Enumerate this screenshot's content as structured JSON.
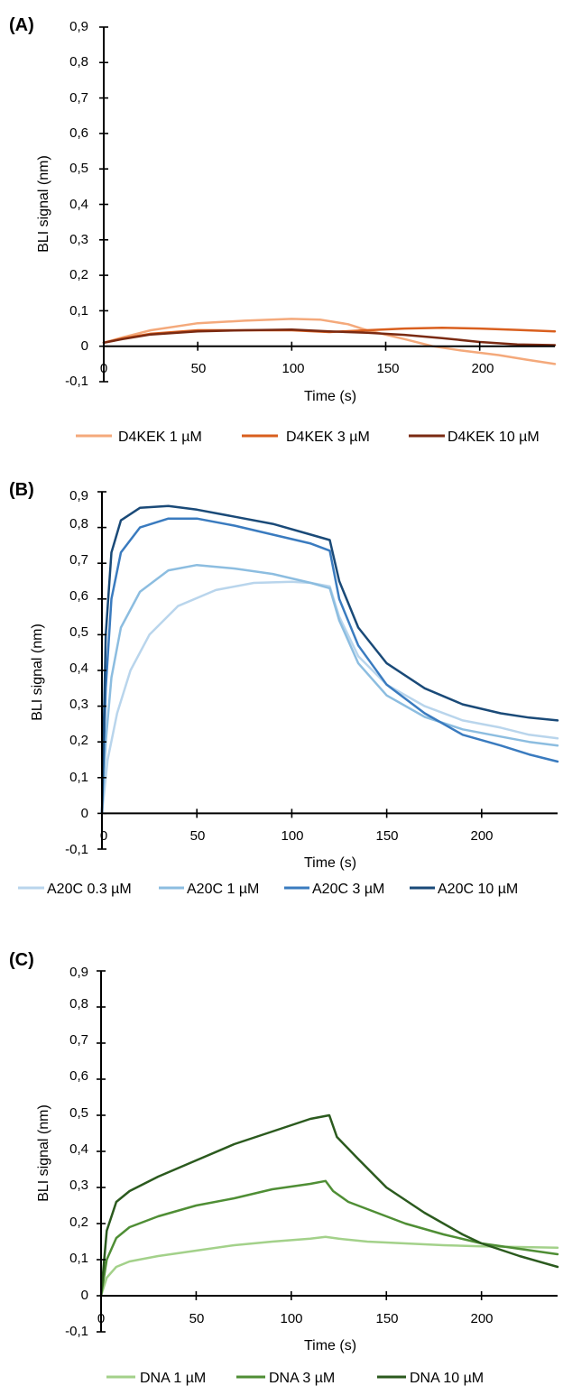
{
  "chart_data": [
    {
      "panel_label": "(A)",
      "type": "line",
      "xlabel": "Time (s)",
      "ylabel": "BLI signal (nm)",
      "xlim": [
        0,
        240
      ],
      "ylim": [
        -0.1,
        0.9
      ],
      "xticks": [
        "0",
        "50",
        "100",
        "150",
        "200"
      ],
      "yticks": [
        "-0,1",
        "0",
        "0,1",
        "0,2",
        "0,3",
        "0,4",
        "0,5",
        "0,6",
        "0,7",
        "0,8",
        "0,9"
      ],
      "grid": false,
      "legend_position": "bottom",
      "series": [
        {
          "name": "D4KEK 1 µM",
          "color": "#f4a97b",
          "points": [
            [
              0,
              0.01
            ],
            [
              10,
              0.025
            ],
            [
              25,
              0.045
            ],
            [
              50,
              0.065
            ],
            [
              75,
              0.072
            ],
            [
              100,
              0.077
            ],
            [
              115,
              0.075
            ],
            [
              130,
              0.062
            ],
            [
              140,
              0.045
            ],
            [
              160,
              0.02
            ],
            [
              175,
              0.0
            ],
            [
              190,
              -0.012
            ],
            [
              210,
              -0.025
            ],
            [
              225,
              -0.038
            ],
            [
              240,
              -0.05
            ]
          ]
        },
        {
          "name": "D4KEK 3 µM",
          "color": "#d95f1e",
          "points": [
            [
              0,
              0.01
            ],
            [
              10,
              0.022
            ],
            [
              25,
              0.035
            ],
            [
              50,
              0.045
            ],
            [
              75,
              0.045
            ],
            [
              100,
              0.045
            ],
            [
              120,
              0.04
            ],
            [
              140,
              0.045
            ],
            [
              160,
              0.05
            ],
            [
              180,
              0.052
            ],
            [
              200,
              0.05
            ],
            [
              220,
              0.046
            ],
            [
              240,
              0.042
            ]
          ]
        },
        {
          "name": "D4KEK 10 µM",
          "color": "#7a2a12",
          "points": [
            [
              0,
              0.01
            ],
            [
              10,
              0.02
            ],
            [
              25,
              0.033
            ],
            [
              50,
              0.042
            ],
            [
              75,
              0.045
            ],
            [
              100,
              0.047
            ],
            [
              120,
              0.042
            ],
            [
              140,
              0.038
            ],
            [
              160,
              0.032
            ],
            [
              180,
              0.023
            ],
            [
              200,
              0.012
            ],
            [
              220,
              0.005
            ],
            [
              240,
              0.003
            ]
          ]
        }
      ]
    },
    {
      "panel_label": "(B)",
      "type": "line",
      "xlabel": "Time (s)",
      "ylabel": "BLI  signal (nm)",
      "xlim": [
        0,
        240
      ],
      "ylim": [
        -0.1,
        0.9
      ],
      "xticks": [
        "0",
        "50",
        "100",
        "150",
        "200"
      ],
      "yticks": [
        "-0,1",
        "0",
        "0,1",
        "0,2",
        "0,3",
        "0,4",
        "0,5",
        "0,6",
        "0,7",
        "0,8",
        "0,9"
      ],
      "grid": false,
      "legend_position": "bottom",
      "series": [
        {
          "name": "A20C 0.3 µM",
          "color": "#b9d5ec",
          "points": [
            [
              0,
              0.0
            ],
            [
              3,
              0.15
            ],
            [
              8,
              0.28
            ],
            [
              15,
              0.4
            ],
            [
              25,
              0.5
            ],
            [
              40,
              0.58
            ],
            [
              60,
              0.625
            ],
            [
              80,
              0.645
            ],
            [
              100,
              0.648
            ],
            [
              110,
              0.645
            ],
            [
              120,
              0.635
            ],
            [
              125,
              0.55
            ],
            [
              135,
              0.44
            ],
            [
              150,
              0.36
            ],
            [
              170,
              0.3
            ],
            [
              190,
              0.26
            ],
            [
              210,
              0.24
            ],
            [
              225,
              0.22
            ],
            [
              240,
              0.21
            ]
          ]
        },
        {
          "name": "A20C 1 µM",
          "color": "#8cbde0",
          "points": [
            [
              0,
              0.0
            ],
            [
              2,
              0.2
            ],
            [
              5,
              0.38
            ],
            [
              10,
              0.52
            ],
            [
              20,
              0.62
            ],
            [
              35,
              0.68
            ],
            [
              50,
              0.695
            ],
            [
              70,
              0.685
            ],
            [
              90,
              0.67
            ],
            [
              110,
              0.645
            ],
            [
              120,
              0.63
            ],
            [
              125,
              0.54
            ],
            [
              135,
              0.42
            ],
            [
              150,
              0.33
            ],
            [
              170,
              0.27
            ],
            [
              190,
              0.235
            ],
            [
              210,
              0.215
            ],
            [
              225,
              0.2
            ],
            [
              240,
              0.19
            ]
          ]
        },
        {
          "name": "A20C 3 µM",
          "color": "#3a7bbf",
          "points": [
            [
              0,
              0.0
            ],
            [
              2,
              0.35
            ],
            [
              5,
              0.6
            ],
            [
              10,
              0.73
            ],
            [
              20,
              0.8
            ],
            [
              35,
              0.825
            ],
            [
              50,
              0.825
            ],
            [
              70,
              0.805
            ],
            [
              90,
              0.78
            ],
            [
              110,
              0.755
            ],
            [
              120,
              0.735
            ],
            [
              125,
              0.6
            ],
            [
              135,
              0.47
            ],
            [
              150,
              0.36
            ],
            [
              170,
              0.28
            ],
            [
              190,
              0.22
            ],
            [
              210,
              0.19
            ],
            [
              225,
              0.165
            ],
            [
              240,
              0.145
            ]
          ]
        },
        {
          "name": "A20C 10 µM",
          "color": "#1a4a78",
          "points": [
            [
              0,
              0.0
            ],
            [
              2,
              0.5
            ],
            [
              5,
              0.73
            ],
            [
              10,
              0.82
            ],
            [
              20,
              0.855
            ],
            [
              35,
              0.86
            ],
            [
              50,
              0.85
            ],
            [
              70,
              0.83
            ],
            [
              90,
              0.81
            ],
            [
              110,
              0.78
            ],
            [
              120,
              0.765
            ],
            [
              125,
              0.65
            ],
            [
              135,
              0.52
            ],
            [
              150,
              0.42
            ],
            [
              170,
              0.35
            ],
            [
              190,
              0.305
            ],
            [
              210,
              0.28
            ],
            [
              225,
              0.268
            ],
            [
              240,
              0.26
            ]
          ]
        }
      ]
    },
    {
      "panel_label": "(C)",
      "type": "line",
      "xlabel": "Time (s)",
      "ylabel": "BLI signal (nm)",
      "xlim": [
        0,
        240
      ],
      "ylim": [
        -0.1,
        0.9
      ],
      "xticks": [
        "0",
        "50",
        "100",
        "150",
        "200"
      ],
      "yticks": [
        "-0,1",
        "0",
        "0,1",
        "0,2",
        "0,3",
        "0,4",
        "0,5",
        "0,6",
        "0,7",
        "0,8",
        "0,9"
      ],
      "grid": false,
      "legend_position": "bottom",
      "series": [
        {
          "name": "DNA 1 µM",
          "color": "#a3d18a",
          "points": [
            [
              0,
              0.0
            ],
            [
              3,
              0.05
            ],
            [
              8,
              0.08
            ],
            [
              15,
              0.095
            ],
            [
              30,
              0.11
            ],
            [
              50,
              0.125
            ],
            [
              70,
              0.14
            ],
            [
              90,
              0.15
            ],
            [
              110,
              0.158
            ],
            [
              118,
              0.163
            ],
            [
              125,
              0.158
            ],
            [
              140,
              0.15
            ],
            [
              160,
              0.145
            ],
            [
              180,
              0.14
            ],
            [
              200,
              0.137
            ],
            [
              220,
              0.135
            ],
            [
              240,
              0.133
            ]
          ]
        },
        {
          "name": "DNA 3 µM",
          "color": "#4f8e35",
          "points": [
            [
              0,
              0.0
            ],
            [
              3,
              0.1
            ],
            [
              8,
              0.16
            ],
            [
              15,
              0.19
            ],
            [
              30,
              0.22
            ],
            [
              50,
              0.25
            ],
            [
              70,
              0.27
            ],
            [
              90,
              0.295
            ],
            [
              110,
              0.31
            ],
            [
              118,
              0.318
            ],
            [
              122,
              0.29
            ],
            [
              130,
              0.26
            ],
            [
              145,
              0.23
            ],
            [
              160,
              0.2
            ],
            [
              180,
              0.17
            ],
            [
              200,
              0.145
            ],
            [
              220,
              0.13
            ],
            [
              240,
              0.115
            ]
          ]
        },
        {
          "name": "DNA 10 µM",
          "color": "#2b5a1e",
          "points": [
            [
              0,
              0.0
            ],
            [
              3,
              0.18
            ],
            [
              8,
              0.26
            ],
            [
              15,
              0.29
            ],
            [
              30,
              0.33
            ],
            [
              50,
              0.375
            ],
            [
              70,
              0.42
            ],
            [
              90,
              0.455
            ],
            [
              110,
              0.49
            ],
            [
              120,
              0.5
            ],
            [
              124,
              0.44
            ],
            [
              135,
              0.38
            ],
            [
              150,
              0.3
            ],
            [
              170,
              0.23
            ],
            [
              190,
              0.17
            ],
            [
              200,
              0.145
            ],
            [
              220,
              0.11
            ],
            [
              240,
              0.08
            ]
          ]
        }
      ]
    }
  ]
}
